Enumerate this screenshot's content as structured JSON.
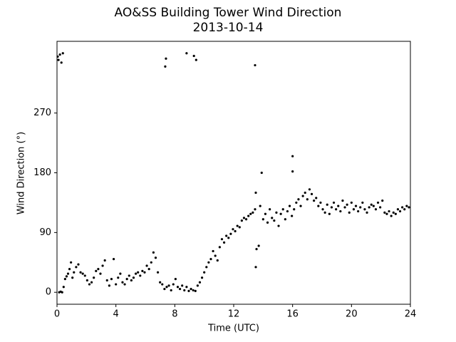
{
  "chart_data": {
    "type": "scatter",
    "title": "AO&SS Building Tower Wind Direction",
    "subtitle": "2013-10-14",
    "x_label": "Time (UTC)",
    "y_label": "Wind Direction (°)",
    "xlim": [
      0,
      24
    ],
    "xticks": [
      0,
      4,
      8,
      12,
      16,
      20,
      24
    ],
    "ylim": [
      -18,
      378
    ],
    "yticks": [
      0,
      90,
      180,
      270
    ],
    "grid": false,
    "color": "#000000",
    "x": [
      0.05,
      0.1,
      0.2,
      0.3,
      0.4,
      0.15,
      0.25,
      0.35,
      0.45,
      0.55,
      0.65,
      0.75,
      0.85,
      0.95,
      1.05,
      1.15,
      1.3,
      1.45,
      1.6,
      1.75,
      1.9,
      2.05,
      2.2,
      2.35,
      2.5,
      2.65,
      2.8,
      2.95,
      3.1,
      3.25,
      3.4,
      3.55,
      3.7,
      3.85,
      4.0,
      4.15,
      4.3,
      4.45,
      4.6,
      4.75,
      4.9,
      5.05,
      5.2,
      5.35,
      5.5,
      5.65,
      5.8,
      5.95,
      6.1,
      6.25,
      6.4,
      6.55,
      6.7,
      6.85,
      7.0,
      7.15,
      7.3,
      7.45,
      7.6,
      7.75,
      7.9,
      8.05,
      8.2,
      8.35,
      8.5,
      8.65,
      8.8,
      8.95,
      9.1,
      9.25,
      9.4,
      9.55,
      9.7,
      9.85,
      10.0,
      10.15,
      10.3,
      10.45,
      10.6,
      10.75,
      10.9,
      11.05,
      11.2,
      11.35,
      11.5,
      11.65,
      11.8,
      11.95,
      12.1,
      12.25,
      12.4,
      12.55,
      12.7,
      12.85,
      13.0,
      13.15,
      13.3,
      13.45,
      13.5,
      13.5,
      13.55,
      13.7,
      13.8,
      13.9,
      14.0,
      14.15,
      14.3,
      14.45,
      14.6,
      14.75,
      14.9,
      15.05,
      15.2,
      15.35,
      15.5,
      15.65,
      15.8,
      15.95,
      16.0,
      16.0,
      16.1,
      16.25,
      16.4,
      16.55,
      16.7,
      16.85,
      17.0,
      17.15,
      17.3,
      17.45,
      17.6,
      17.75,
      17.9,
      18.05,
      18.2,
      18.35,
      18.5,
      18.65,
      18.8,
      18.95,
      19.1,
      19.25,
      19.4,
      19.55,
      19.7,
      19.85,
      20.0,
      20.15,
      20.3,
      20.45,
      20.6,
      20.75,
      20.9,
      21.05,
      21.2,
      21.35,
      21.5,
      21.65,
      21.8,
      21.95,
      22.1,
      22.25,
      22.4,
      22.55,
      22.7,
      22.85,
      23.0,
      23.15,
      23.3,
      23.45,
      23.6,
      23.75,
      23.9,
      7.35,
      7.4,
      8.8,
      9.3,
      9.45,
      13.45
    ],
    "values": [
      355,
      350,
      358,
      346,
      360,
      0,
      1,
      0,
      8,
      20,
      24,
      28,
      35,
      45,
      22,
      30,
      38,
      42,
      30,
      28,
      25,
      18,
      12,
      15,
      22,
      32,
      35,
      28,
      40,
      48,
      18,
      10,
      20,
      50,
      12,
      22,
      28,
      15,
      12,
      20,
      25,
      18,
      22,
      28,
      30,
      25,
      32,
      30,
      40,
      35,
      45,
      60,
      52,
      30,
      15,
      12,
      5,
      8,
      10,
      3,
      12,
      20,
      8,
      5,
      10,
      3,
      8,
      2,
      5,
      3,
      2,
      10,
      15,
      22,
      30,
      38,
      45,
      50,
      62,
      55,
      48,
      68,
      80,
      75,
      85,
      82,
      88,
      95,
      92,
      100,
      98,
      108,
      112,
      110,
      115,
      118,
      120,
      125,
      150,
      38,
      65,
      70,
      130,
      180,
      110,
      118,
      105,
      125,
      112,
      108,
      120,
      100,
      118,
      125,
      110,
      122,
      130,
      115,
      182,
      205,
      125,
      135,
      140,
      130,
      145,
      150,
      140,
      155,
      148,
      138,
      142,
      130,
      135,
      125,
      120,
      132,
      118,
      128,
      135,
      125,
      130,
      122,
      138,
      128,
      132,
      120,
      135,
      125,
      130,
      122,
      128,
      135,
      125,
      120,
      128,
      132,
      130,
      125,
      135,
      128,
      138,
      120,
      118,
      122,
      115,
      120,
      118,
      125,
      122,
      128,
      125,
      130,
      128,
      340,
      352,
      360,
      356,
      350,
      342
    ]
  }
}
